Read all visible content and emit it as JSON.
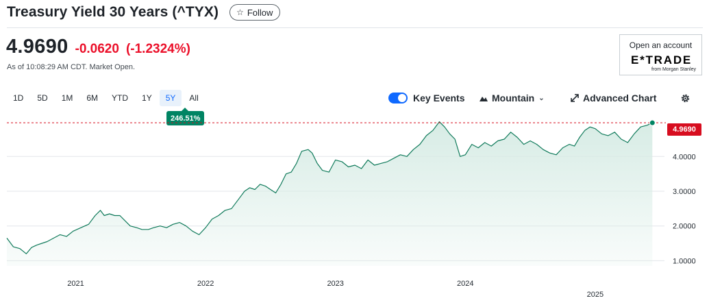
{
  "header": {
    "title": "Treasury Yield 30 Years (^TYX)",
    "follow_label": "Follow",
    "price": "4.9690",
    "change": "-0.0620",
    "change_percent": "(-1.2324%)",
    "timestamp": "As of 10:08:29 AM CDT. Market Open."
  },
  "ad": {
    "open_label": "Open an account",
    "brand": "E*TRADE",
    "sub": "from Morgan Stanley"
  },
  "tabs": [
    {
      "label": "1D"
    },
    {
      "label": "5D"
    },
    {
      "label": "1M"
    },
    {
      "label": "6M"
    },
    {
      "label": "YTD"
    },
    {
      "label": "1Y"
    },
    {
      "label": "5Y",
      "active": true
    },
    {
      "label": "All"
    }
  ],
  "performance_badge": "246.51%",
  "controls": {
    "key_events_label": "Key Events",
    "key_events_on": true,
    "chart_type_label": "Mountain",
    "advanced_label": "Advanced Chart",
    "settings_icon": "gear-icon"
  },
  "colors": {
    "line": "#0f7a5a",
    "fill": "#d7ece5",
    "negative": "#eb0f29",
    "accent": "#0f69ff",
    "badge": "#008463",
    "price_tag": "#d70d1f"
  },
  "chart_data": {
    "type": "area",
    "y_ticks": [
      "4.0000",
      "3.0000",
      "2.0000",
      "1.0000"
    ],
    "y_tick_values": [
      4,
      3,
      2,
      1
    ],
    "x_tick_labels": [
      "2021",
      "2022",
      "2023",
      "2024",
      "2025"
    ],
    "x_tick_values": [
      2021.0,
      2022.0,
      2023.0,
      2024.0,
      2025.0
    ],
    "last_price_label": "4.9690",
    "last_price": 4.969,
    "ylim": [
      0.85,
      5.15
    ],
    "xlim": [
      2020.47,
      2025.47
    ],
    "series": [
      {
        "x": [
          2020.47,
          2020.52,
          2020.57,
          2020.62,
          2020.66,
          2020.7,
          2020.74,
          2020.78,
          2020.83,
          2020.88,
          2020.93,
          2020.98,
          2021.04,
          2021.1,
          2021.15,
          2021.19,
          2021.22,
          2021.26,
          2021.3,
          2021.34,
          2021.38,
          2021.42,
          2021.47,
          2021.51,
          2021.56,
          2021.6,
          2021.65,
          2021.7,
          2021.75,
          2021.8,
          2021.85,
          2021.9,
          2021.95,
          2022.0,
          2022.05,
          2022.1,
          2022.15,
          2022.2,
          2022.25,
          2022.3,
          2022.34,
          2022.38,
          2022.42,
          2022.46,
          2022.5,
          2022.54,
          2022.58,
          2022.62,
          2022.66,
          2022.7,
          2022.74,
          2022.79,
          2022.82,
          2022.86,
          2022.9,
          2022.95,
          2023.0,
          2023.05,
          2023.1,
          2023.15,
          2023.2,
          2023.25,
          2023.3,
          2023.35,
          2023.4,
          2023.45,
          2023.5,
          2023.55,
          2023.6,
          2023.65,
          2023.7,
          2023.75,
          2023.8,
          2023.84,
          2023.88,
          2023.92,
          2023.96,
          2024.0,
          2024.05,
          2024.1,
          2024.15,
          2024.2,
          2024.25,
          2024.3,
          2024.35,
          2024.4,
          2024.45,
          2024.5,
          2024.55,
          2024.6,
          2024.65,
          2024.7,
          2024.75,
          2024.8,
          2024.84,
          2024.88,
          2024.92,
          2024.96,
          2025.0,
          2025.05,
          2025.1,
          2025.15,
          2025.2,
          2025.25,
          2025.3,
          2025.35,
          2025.4,
          2025.44
        ],
        "y": [
          1.65,
          1.4,
          1.35,
          1.2,
          1.38,
          1.45,
          1.5,
          1.55,
          1.65,
          1.75,
          1.7,
          1.85,
          1.95,
          2.05,
          2.3,
          2.45,
          2.3,
          2.35,
          2.3,
          2.3,
          2.15,
          2.0,
          1.95,
          1.9,
          1.9,
          1.95,
          2.0,
          1.95,
          2.05,
          2.1,
          2.0,
          1.85,
          1.75,
          1.95,
          2.2,
          2.3,
          2.45,
          2.5,
          2.75,
          3.0,
          3.1,
          3.05,
          3.2,
          3.15,
          3.05,
          2.95,
          3.2,
          3.5,
          3.55,
          3.8,
          4.15,
          4.2,
          4.1,
          3.8,
          3.6,
          3.55,
          3.9,
          3.85,
          3.7,
          3.75,
          3.65,
          3.9,
          3.75,
          3.8,
          3.85,
          3.95,
          4.05,
          4.0,
          4.2,
          4.35,
          4.6,
          4.75,
          5.0,
          4.85,
          4.65,
          4.5,
          4.0,
          4.05,
          4.35,
          4.25,
          4.4,
          4.3,
          4.45,
          4.5,
          4.7,
          4.55,
          4.35,
          4.45,
          4.35,
          4.2,
          4.1,
          4.05,
          4.25,
          4.35,
          4.3,
          4.55,
          4.75,
          4.85,
          4.8,
          4.65,
          4.6,
          4.7,
          4.5,
          4.4,
          4.65,
          4.85,
          4.9,
          4.969
        ]
      }
    ]
  }
}
